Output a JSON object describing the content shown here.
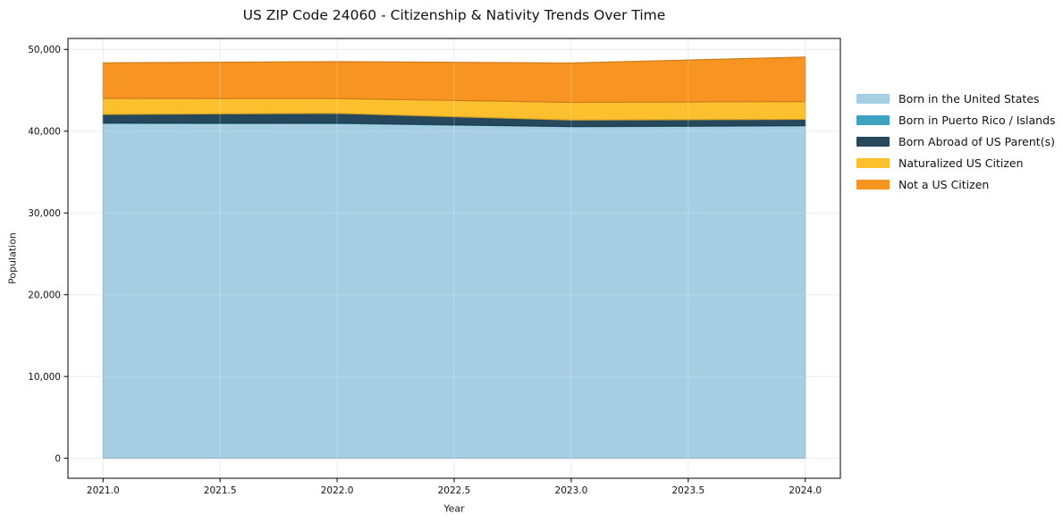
{
  "title": "US ZIP Code 24060 - Citizenship & Nativity Trends Over Time",
  "chart_data": {
    "type": "area",
    "stacked": true,
    "title": "US ZIP Code 24060 - Citizenship & Nativity Trends Over Time",
    "xlabel": "Year",
    "ylabel": "Population",
    "x": [
      2021,
      2022,
      2023,
      2024
    ],
    "series": [
      {
        "name": "Born in the United States",
        "color": "#a6cee3",
        "values": [
          40950,
          40940,
          40540,
          40650
        ]
      },
      {
        "name": "Born in Puerto Rico / Islands",
        "color": "#3fa2c2",
        "values": [
          60,
          50,
          40,
          40
        ]
      },
      {
        "name": "Born Abroad of US Parent(s)",
        "color": "#25485c",
        "values": [
          1040,
          1190,
          780,
          760
        ]
      },
      {
        "name": "Naturalized US Citizen",
        "color": "#fcc02e",
        "values": [
          1960,
          1820,
          2170,
          2180
        ]
      },
      {
        "name": "Not a US Citizen",
        "color": "#f79422",
        "values": [
          4350,
          4510,
          4820,
          5440
        ]
      }
    ],
    "x_ticks": {
      "values": [
        2021.0,
        2021.5,
        2022.0,
        2022.5,
        2023.0,
        2023.5,
        2024.0
      ],
      "labels": [
        "2021.0",
        "2021.5",
        "2022.0",
        "2022.5",
        "2023.0",
        "2023.5",
        "2024.0"
      ]
    },
    "y_ticks": {
      "values": [
        0,
        10000,
        20000,
        30000,
        40000,
        50000
      ],
      "labels": [
        "0",
        "10,000",
        "20,000",
        "30,000",
        "40,000",
        "50,000"
      ]
    },
    "xlim": [
      2020.85,
      2024.15
    ],
    "ylim": [
      -2445,
      51345
    ],
    "grid": true,
    "grid_color": "#e8e8e8",
    "spine_color": "#000000",
    "legend_position": "right"
  }
}
